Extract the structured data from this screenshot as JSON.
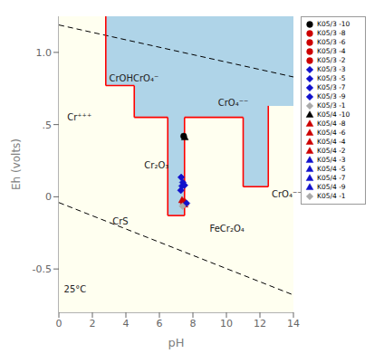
{
  "chart_data": {
    "type": "scatter",
    "xlabel": "pH",
    "ylabel": "Eh (volts)",
    "xlim": [
      0,
      14
    ],
    "ylim": [
      -0.8,
      1.25
    ],
    "xticks": [
      0,
      2,
      4,
      6,
      8,
      10,
      12,
      14
    ],
    "yticks": [
      -0.5,
      0,
      {
        "value": 0.5,
        "label": ".5"
      },
      {
        "value": 1.0,
        "label": "1.0"
      }
    ],
    "grid": false,
    "legend": "upper right",
    "regions": [
      {
        "color": "#fffff0",
        "vertices": [
          [
            0,
            1.25
          ],
          [
            2.8,
            1.25
          ],
          [
            2.8,
            0.77
          ],
          [
            4.5,
            0.77
          ],
          [
            4.5,
            0.55
          ],
          [
            6.5,
            0.55
          ],
          [
            6.5,
            -0.13
          ],
          [
            7.5,
            -0.13
          ],
          [
            7.5,
            0.55
          ],
          [
            11.0,
            0.55
          ],
          [
            11.0,
            0.07
          ],
          [
            12.5,
            0.07
          ],
          [
            12.5,
            0.63
          ],
          [
            14,
            0.63
          ],
          [
            14,
            -0.8
          ],
          [
            0,
            -0.8
          ]
        ]
      },
      {
        "color": "#afd4e8",
        "vertices": [
          [
            0,
            1.25
          ],
          [
            14,
            1.25
          ],
          [
            14,
            0.63
          ],
          [
            12.5,
            0.63
          ],
          [
            12.5,
            0.07
          ],
          [
            11.0,
            0.07
          ],
          [
            11.0,
            0.55
          ],
          [
            7.5,
            0.55
          ],
          [
            7.5,
            -0.13
          ],
          [
            6.5,
            -0.13
          ],
          [
            6.5,
            0.55
          ],
          [
            4.5,
            0.55
          ],
          [
            4.5,
            0.77
          ],
          [
            2.8,
            0.77
          ],
          [
            2.8,
            1.25
          ]
        ]
      }
    ],
    "lines": [
      {
        "x": [
          0,
          14
        ],
        "y": [
          1.19,
          0.83
        ],
        "color": "black",
        "line_style": "dashed"
      },
      {
        "x": [
          0,
          14
        ],
        "y": [
          -0.04,
          -0.68
        ],
        "color": "black",
        "line_style": "dashed"
      },
      {
        "x": [
          2.8,
          2.8
        ],
        "y": [
          0.77,
          1.25
        ],
        "color": "red",
        "line_style": "solid"
      },
      {
        "x": [
          2.8,
          4.5
        ],
        "y": [
          0.77,
          0.77
        ],
        "color": "red",
        "line_style": "solid"
      },
      {
        "x": [
          4.5,
          4.5
        ],
        "y": [
          0.55,
          0.77
        ],
        "color": "red",
        "line_style": "solid"
      },
      {
        "x": [
          4.5,
          6.5
        ],
        "y": [
          0.55,
          0.55
        ],
        "color": "red",
        "line_style": "solid"
      },
      {
        "x": [
          6.5,
          6.5
        ],
        "y": [
          -0.13,
          0.55
        ],
        "color": "red",
        "line_style": "solid"
      },
      {
        "x": [
          6.5,
          7.5
        ],
        "y": [
          -0.13,
          -0.13
        ],
        "color": "red",
        "line_style": "solid"
      },
      {
        "x": [
          7.5,
          7.5
        ],
        "y": [
          -0.13,
          0.55
        ],
        "color": "red",
        "line_style": "solid"
      },
      {
        "x": [
          7.5,
          11.0
        ],
        "y": [
          0.55,
          0.55
        ],
        "color": "red",
        "line_style": "solid"
      },
      {
        "x": [
          11.0,
          11.0
        ],
        "y": [
          0.07,
          0.55
        ],
        "color": "red",
        "line_style": "solid"
      },
      {
        "x": [
          11.0,
          12.5
        ],
        "y": [
          0.07,
          0.07
        ],
        "color": "red",
        "line_style": "solid"
      },
      {
        "x": [
          12.5,
          12.5
        ],
        "y": [
          0.07,
          0.63
        ],
        "color": "red",
        "line_style": "solid"
      }
    ],
    "annotations": [
      {
        "text": "Cr⁺⁺⁺",
        "x": 0.5,
        "y": 0.55
      },
      {
        "text": "CrOHCrO₄⁻",
        "x": 3.0,
        "y": 0.82
      },
      {
        "text": "Cr₂O₃",
        "x": 5.1,
        "y": 0.22
      },
      {
        "text": "CrS",
        "x": 3.2,
        "y": -0.17
      },
      {
        "text": "CrO₄⁻⁻",
        "x": 9.5,
        "y": 0.65
      },
      {
        "text": "FeCr₂O₄",
        "x": 9.0,
        "y": -0.22
      },
      {
        "text": "CrO₄⁻⁻",
        "x": 12.7,
        "y": 0.02
      },
      {
        "text": "25°C",
        "x": 0.3,
        "y": -0.64
      }
    ],
    "legend_entries": [
      {
        "name": "K05/3 -10",
        "color": "black",
        "marker": "o"
      },
      {
        "name": "K05/3 -8",
        "color": "#cc0000",
        "marker": "o"
      },
      {
        "name": "K05/3 -6",
        "color": "#cc0000",
        "marker": "o"
      },
      {
        "name": "K05/3 -4",
        "color": "#cc0000",
        "marker": "o"
      },
      {
        "name": "K05/3 -2",
        "color": "#cc0000",
        "marker": "o"
      },
      {
        "name": "K05/3 -3",
        "color": "#1111cc",
        "marker": "D"
      },
      {
        "name": "K05/3 -5",
        "color": "#1111cc",
        "marker": "D"
      },
      {
        "name": "K05/3 -7",
        "color": "#1111cc",
        "marker": "D"
      },
      {
        "name": "K05/3 -9",
        "color": "#1111cc",
        "marker": "D"
      },
      {
        "name": "K05/3 -1",
        "color": "#aaaaaa",
        "marker": "D"
      },
      {
        "name": "K05/4 -10",
        "color": "black",
        "marker": "^"
      },
      {
        "name": "K05/4 -8",
        "color": "#cc0000",
        "marker": "^"
      },
      {
        "name": "K05/4 -6",
        "color": "#cc0000",
        "marker": "^"
      },
      {
        "name": "K05/4 -4",
        "color": "#cc0000",
        "marker": "^"
      },
      {
        "name": "K05/4 -2",
        "color": "#cc0000",
        "marker": "^"
      },
      {
        "name": "K05/4 -3",
        "color": "#1111cc",
        "marker": "^"
      },
      {
        "name": "K05/4 -5",
        "color": "#1111cc",
        "marker": "^"
      },
      {
        "name": "K05/4 -7",
        "color": "#1111cc",
        "marker": "^"
      },
      {
        "name": "K05/4 -9",
        "color": "#1111cc",
        "marker": "^"
      },
      {
        "name": "K05/4 -1",
        "color": "#aaaaaa",
        "marker": "D"
      }
    ],
    "points": [
      {
        "x": 7.45,
        "y": 0.42,
        "color": "black",
        "marker": "o"
      },
      {
        "x": 7.52,
        "y": 0.41,
        "color": "black",
        "marker": "^"
      },
      {
        "x": 7.3,
        "y": 0.135,
        "color": "#1111cc",
        "marker": "D"
      },
      {
        "x": 7.4,
        "y": 0.1,
        "color": "#1111cc",
        "marker": "D"
      },
      {
        "x": 7.35,
        "y": 0.075,
        "color": "#1111cc",
        "marker": "D"
      },
      {
        "x": 7.5,
        "y": 0.08,
        "color": "#1111cc",
        "marker": "D"
      },
      {
        "x": 7.28,
        "y": 0.045,
        "color": "#1111cc",
        "marker": "D"
      },
      {
        "x": 7.35,
        "y": -0.025,
        "color": "#cc0000",
        "marker": "^"
      },
      {
        "x": 7.45,
        "y": -0.035,
        "color": "#cc0000",
        "marker": "^"
      },
      {
        "x": 7.55,
        "y": -0.04,
        "color": "#cc0000",
        "marker": "^"
      },
      {
        "x": 7.5,
        "y": -0.055,
        "color": "#cc0000",
        "marker": "^"
      },
      {
        "x": 7.62,
        "y": -0.045,
        "color": "#1111cc",
        "marker": "D"
      },
      {
        "x": 7.38,
        "y": -0.065,
        "color": "#aaaaaa",
        "marker": "D"
      }
    ]
  }
}
